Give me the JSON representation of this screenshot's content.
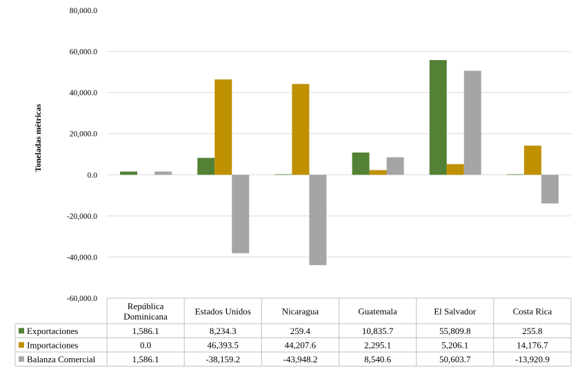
{
  "chart_data": {
    "type": "bar",
    "ylabel": "Toneladas  métricas",
    "ylim": [
      -60000,
      80000
    ],
    "yticks": [
      80000,
      60000,
      40000,
      20000,
      0,
      -20000,
      -40000,
      -60000
    ],
    "ytick_labels": [
      "80,000.0",
      "60,000.0",
      "40,000.0",
      "20,000.0",
      "0.0",
      "-20,000.0",
      "-40,000.0",
      "-60,000.0"
    ],
    "grid": true,
    "legend": "data-table",
    "categories": [
      [
        "República",
        "Dominicana"
      ],
      [
        "Estados Unidos"
      ],
      [
        "Nicaragua"
      ],
      [
        "Guatemala"
      ],
      [
        "El Salvador"
      ],
      [
        "Costa Rica"
      ]
    ],
    "series": [
      {
        "name": "Exportaciones",
        "color": "#538135",
        "values": [
          1586.1,
          8234.3,
          259.4,
          10835.7,
          55809.8,
          255.8
        ],
        "labels": [
          "1,586.1",
          "8,234.3",
          "259.4",
          "10,835.7",
          "55,809.8",
          "255.8"
        ]
      },
      {
        "name": "Importaciones",
        "color": "#BF9000",
        "values": [
          0.0,
          46393.5,
          44207.6,
          2295.1,
          5206.1,
          14176.7
        ],
        "labels": [
          "0.0",
          "46,393.5",
          "44,207.6",
          "2,295.1",
          "5,206.1",
          "14,176.7"
        ]
      },
      {
        "name": "Balanza Comercial",
        "color": "#A5A5A5",
        "values": [
          1586.1,
          -38159.2,
          -43948.2,
          8540.6,
          50603.7,
          -13920.9
        ],
        "labels": [
          "1,586.1",
          "-38,159.2",
          "-43,948.2",
          "8,540.6",
          "50,603.7",
          "-13,920.9"
        ]
      }
    ]
  }
}
